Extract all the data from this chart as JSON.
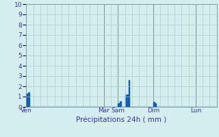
{
  "title": "Précipitations 24h ( mm )",
  "bar_color": "#1464b4",
  "bar_edge_color": "#0d50a0",
  "background_color": "#d4eeed",
  "grid_color": "#aacece",
  "axis_label_color": "#3333bb",
  "tick_label_color": "#3333bb",
  "ylim": [
    0,
    10
  ],
  "yticks": [
    0,
    1,
    2,
    3,
    4,
    5,
    6,
    7,
    8,
    9,
    10
  ],
  "day_labels": [
    "Ven",
    "Mar",
    "Sam",
    "Dim",
    "Lun"
  ],
  "day_positions": [
    0,
    44,
    52,
    72,
    96
  ],
  "n_bars": 108,
  "bar_values": [
    1.3,
    1.4,
    0,
    0,
    0,
    0,
    0,
    0,
    0,
    0,
    0,
    0,
    0,
    0,
    0,
    0,
    0,
    0,
    0,
    0,
    0,
    0,
    0,
    0,
    0,
    0,
    0,
    0,
    0,
    0,
    0,
    0,
    0,
    0,
    0,
    0,
    0,
    0,
    0,
    0,
    0,
    0,
    0,
    0,
    0,
    0,
    0,
    0,
    0,
    0,
    0,
    0,
    0.35,
    0.55,
    0,
    0,
    1.15,
    1.2,
    2.6,
    0,
    0,
    0,
    0,
    0,
    0,
    0,
    0,
    0,
    0,
    0,
    0,
    0,
    0.5,
    0.35,
    0,
    0,
    0,
    0,
    0,
    0,
    0,
    0,
    0,
    0,
    0,
    0,
    0,
    0,
    0,
    0,
    0,
    0,
    0,
    0,
    0,
    0,
    0,
    0,
    0,
    0,
    0,
    0,
    0,
    0,
    0,
    0,
    0,
    0
  ]
}
